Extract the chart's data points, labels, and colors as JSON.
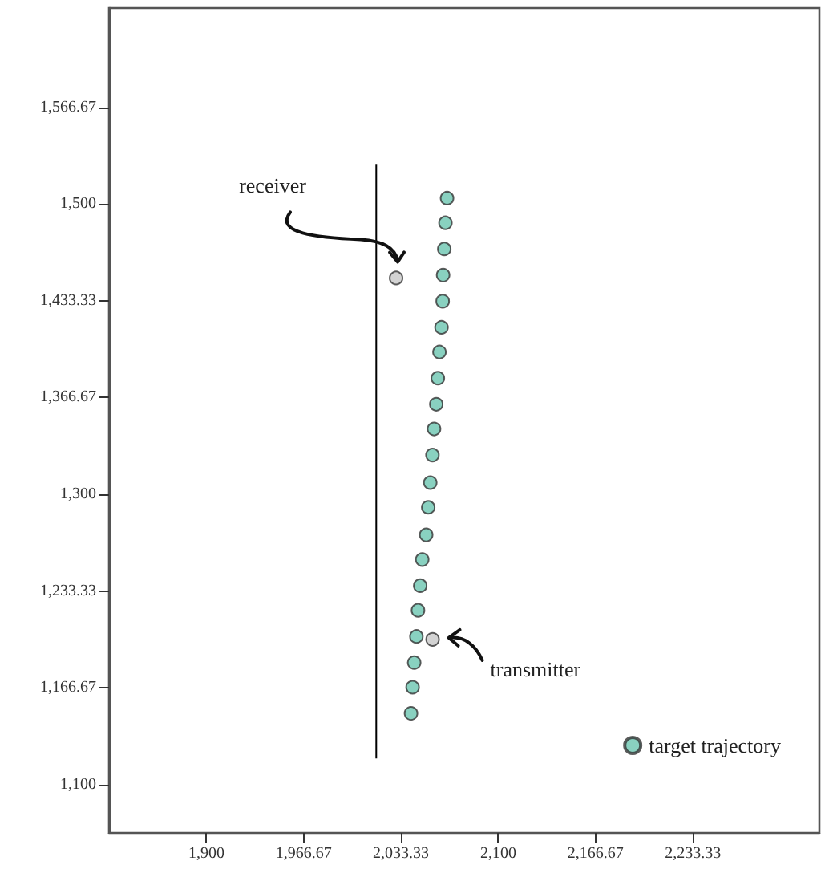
{
  "chart_data": {
    "type": "scatter",
    "xlim": [
      1833.33,
      2320
    ],
    "ylim": [
      1066.67,
      1635
    ],
    "xticks": [
      {
        "value": 1900,
        "label": "1,900"
      },
      {
        "value": 1966.67,
        "label": "1,966.67"
      },
      {
        "value": 2033.33,
        "label": "2,033.33"
      },
      {
        "value": 2100,
        "label": "2,100"
      },
      {
        "value": 2166.67,
        "label": "2,166.67"
      },
      {
        "value": 2233.33,
        "label": "2,233.33"
      }
    ],
    "yticks": [
      {
        "value": 1100,
        "label": "1,100"
      },
      {
        "value": 1166.67,
        "label": "1,166.67"
      },
      {
        "value": 1233.33,
        "label": "1,233.33"
      },
      {
        "value": 1300,
        "label": "1,300"
      },
      {
        "value": 1366.67,
        "label": "1,366.67"
      },
      {
        "value": 1433.33,
        "label": "1,433.33"
      },
      {
        "value": 1500,
        "label": "1,500"
      },
      {
        "value": 1566.67,
        "label": "1,566.67"
      }
    ],
    "grid": false,
    "legend": "bottom right",
    "marker": "circle",
    "series": [
      {
        "type": "line",
        "color": "#000000",
        "marker": "none",
        "x": [
          2016.4,
          2016.4
        ],
        "values": [
          1527,
          1118
        ]
      },
      {
        "name": "target trajectory",
        "color": "#6cc5b0",
        "x": [
          2064.9,
          2063.8,
          2063,
          2062.2,
          2061.9,
          2061.1,
          2059.7,
          2058.6,
          2057.5,
          2056,
          2054.9,
          2053.4,
          2052,
          2050.6,
          2047.9,
          2046.5,
          2045,
          2043.9,
          2042.4,
          2041.3,
          2040.2
        ],
        "values": [
          1504,
          1487,
          1469,
          1451,
          1433,
          1415,
          1398,
          1380,
          1362,
          1345,
          1327,
          1308,
          1291,
          1272,
          1255,
          1237,
          1220,
          1202,
          1184,
          1167,
          1149
        ]
      },
      {
        "color": "#c8c8c8",
        "x": [
          2030
        ],
        "values": [
          1449
        ]
      },
      {
        "color": "#c8c8c8",
        "x": [
          2055
        ],
        "values": [
          1200
        ]
      }
    ],
    "annotations": [
      "receiver",
      "transmitter"
    ]
  }
}
